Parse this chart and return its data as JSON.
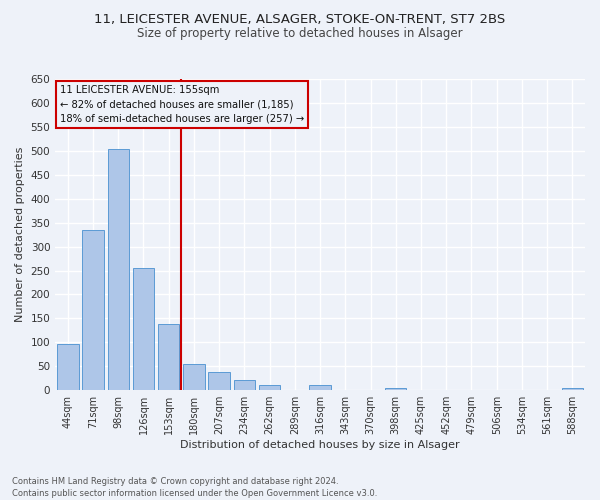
{
  "title1": "11, LEICESTER AVENUE, ALSAGER, STOKE-ON-TRENT, ST7 2BS",
  "title2": "Size of property relative to detached houses in Alsager",
  "xlabel": "Distribution of detached houses by size in Alsager",
  "ylabel": "Number of detached properties",
  "categories": [
    "44sqm",
    "71sqm",
    "98sqm",
    "126sqm",
    "153sqm",
    "180sqm",
    "207sqm",
    "234sqm",
    "262sqm",
    "289sqm",
    "316sqm",
    "343sqm",
    "370sqm",
    "398sqm",
    "425sqm",
    "452sqm",
    "479sqm",
    "506sqm",
    "534sqm",
    "561sqm",
    "588sqm"
  ],
  "values": [
    97,
    335,
    503,
    256,
    138,
    54,
    38,
    22,
    10,
    0,
    11,
    0,
    0,
    4,
    0,
    0,
    0,
    0,
    0,
    0,
    5
  ],
  "bar_color": "#aec6e8",
  "bar_edge_color": "#5b9bd5",
  "vline_x": 4.5,
  "vline_color": "#cc0000",
  "ylim": [
    0,
    650
  ],
  "yticks": [
    0,
    50,
    100,
    150,
    200,
    250,
    300,
    350,
    400,
    450,
    500,
    550,
    600,
    650
  ],
  "annotation_title": "11 LEICESTER AVENUE: 155sqm",
  "annotation_line1": "← 82% of detached houses are smaller (1,185)",
  "annotation_line2": "18% of semi-detached houses are larger (257) →",
  "annotation_box_color": "#cc0000",
  "footer1": "Contains HM Land Registry data © Crown copyright and database right 2024.",
  "footer2": "Contains public sector information licensed under the Open Government Licence v3.0.",
  "bg_color": "#eef2f9",
  "grid_color": "#ffffff",
  "title1_fontsize": 9.5,
  "title2_fontsize": 8.5
}
